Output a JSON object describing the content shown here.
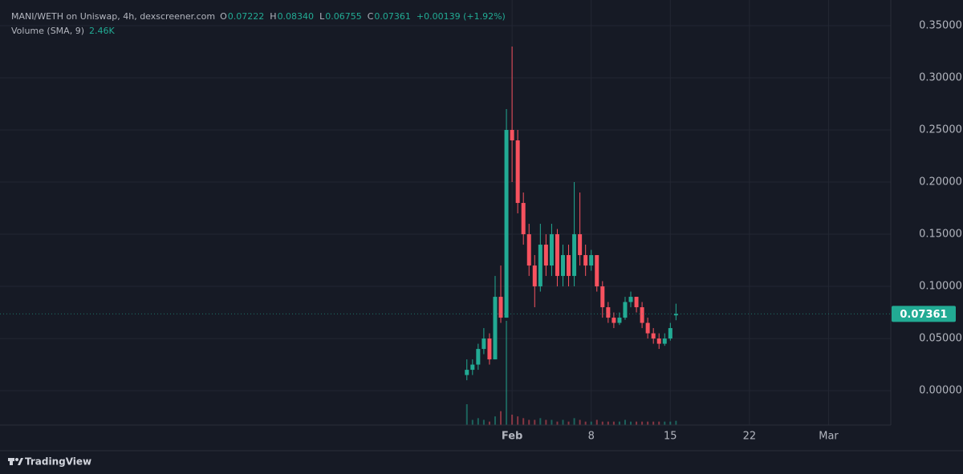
{
  "header": {
    "symbol": "MANI/WETH on Uniswap, 4h, dexscreener.com",
    "ohlc": [
      {
        "key": "O",
        "value": "0.07222"
      },
      {
        "key": "H",
        "value": "0.08340"
      },
      {
        "key": "L",
        "value": "0.06755"
      },
      {
        "key": "C",
        "value": "0.07361"
      }
    ],
    "change": "+0.00139 (+1.92%)",
    "volume_title": "Volume (SMA, 9)",
    "volume_value": "2.46K"
  },
  "price_label": "0.07361",
  "brand": "TradingView",
  "chart_data": {
    "type": "candlestick",
    "up_color": "#22ab94",
    "down_color": "#f7525f",
    "grid": true,
    "x": [
      -3,
      -2.5,
      -2,
      -1.5,
      -1,
      -0.5,
      0,
      0.5,
      1,
      1.5,
      2,
      2.5,
      3,
      3.5,
      4,
      4.5,
      5,
      5.5,
      6,
      6.5,
      7,
      7.5,
      8,
      8.5,
      9,
      9.5,
      10,
      10.5,
      11,
      11.5,
      12,
      12.5,
      13,
      13.5,
      14,
      14.5,
      15,
      15.5
    ],
    "open": [
      0.015,
      0.02,
      0.025,
      0.04,
      0.05,
      0.03,
      0.09,
      0.07,
      0.25,
      0.24,
      0.18,
      0.15,
      0.12,
      0.1,
      0.14,
      0.12,
      0.15,
      0.11,
      0.13,
      0.11,
      0.15,
      0.13,
      0.12,
      0.13,
      0.1,
      0.08,
      0.07,
      0.065,
      0.07,
      0.085,
      0.09,
      0.08,
      0.065,
      0.055,
      0.05,
      0.045,
      0.05,
      0.07222
    ],
    "high": [
      0.03,
      0.03,
      0.045,
      0.06,
      0.055,
      0.11,
      0.12,
      0.27,
      0.33,
      0.25,
      0.19,
      0.16,
      0.13,
      0.16,
      0.15,
      0.16,
      0.155,
      0.14,
      0.14,
      0.2,
      0.19,
      0.14,
      0.135,
      0.13,
      0.105,
      0.085,
      0.075,
      0.075,
      0.09,
      0.095,
      0.09,
      0.085,
      0.07,
      0.06,
      0.055,
      0.055,
      0.065,
      0.0834
    ],
    "low": [
      0.01,
      0.015,
      0.02,
      0.035,
      0.025,
      0.03,
      0.065,
      0.07,
      0.2,
      0.17,
      0.14,
      0.11,
      0.08,
      0.095,
      0.11,
      0.11,
      0.1,
      0.1,
      0.1,
      0.1,
      0.12,
      0.11,
      0.115,
      0.095,
      0.07,
      0.065,
      0.06,
      0.063,
      0.068,
      0.08,
      0.075,
      0.06,
      0.05,
      0.045,
      0.04,
      0.043,
      0.048,
      0.06755
    ],
    "close": [
      0.02,
      0.025,
      0.04,
      0.05,
      0.03,
      0.09,
      0.07,
      0.25,
      0.24,
      0.18,
      0.15,
      0.12,
      0.1,
      0.14,
      0.12,
      0.15,
      0.11,
      0.13,
      0.11,
      0.15,
      0.13,
      0.12,
      0.13,
      0.1,
      0.08,
      0.07,
      0.065,
      0.07,
      0.085,
      0.09,
      0.08,
      0.065,
      0.055,
      0.05,
      0.045,
      0.05,
      0.06,
      0.07361
    ],
    "volume": [
      12,
      3,
      4,
      3,
      2,
      5,
      8,
      60,
      6,
      5,
      4,
      3,
      3,
      4,
      3,
      3,
      2,
      3,
      2,
      4,
      3,
      2,
      2,
      3,
      2,
      2,
      2,
      2,
      3,
      2,
      2,
      2,
      2,
      2,
      2,
      2,
      2,
      2.46
    ],
    "xlim": [
      -44.3,
      34.5
    ],
    "xticks": [
      {
        "value": 1,
        "label": "Feb"
      },
      8,
      15,
      22,
      {
        "value": 29,
        "label": "Mar"
      }
    ],
    "ylim": [
      -0.033,
      0.3746
    ],
    "yticks": [
      {
        "value": 0,
        "label": "0.00000"
      },
      {
        "value": 0.05,
        "label": "0.05000"
      },
      {
        "value": 0.1,
        "label": "0.10000"
      },
      {
        "value": 0.15,
        "label": "0.15000"
      },
      {
        "value": 0.2,
        "label": "0.20000"
      },
      {
        "value": 0.25,
        "label": "0.25000"
      },
      {
        "value": 0.3,
        "label": "0.30000"
      },
      {
        "value": 0.35,
        "label": "0.35000"
      }
    ]
  }
}
